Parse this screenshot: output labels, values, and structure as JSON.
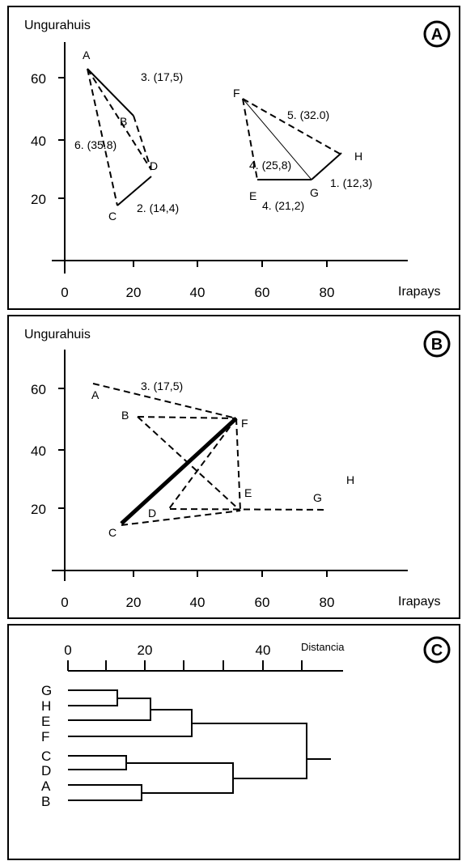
{
  "panel_a": {
    "badge": "A",
    "ylabel": "Ungurahuis",
    "xlabel": "Irapays",
    "yticks": [
      "20",
      "40",
      "60"
    ],
    "xticks": [
      "0",
      "20",
      "40",
      "60",
      "80"
    ],
    "points": [
      "A",
      "B",
      "C",
      "D",
      "E",
      "F",
      "G",
      "H"
    ],
    "annotations": [
      "3. (17,5)",
      "6. (35.8)",
      "2. (14,4)",
      "5. (32.0)",
      "4. (25,8)",
      "4. (21,2)",
      "1. (12,3)"
    ]
  },
  "panel_b": {
    "badge": "B",
    "ylabel": "Ungurahuis",
    "xlabel": "Irapays",
    "yticks": [
      "20",
      "40",
      "60"
    ],
    "xticks": [
      "0",
      "20",
      "40",
      "60",
      "80"
    ],
    "points": [
      "A",
      "B",
      "C",
      "D",
      "E",
      "F",
      "G",
      "H"
    ],
    "annotations": [
      "3. (17,5)"
    ]
  },
  "panel_c": {
    "badge": "C",
    "axis_label": "Distancia",
    "ticks": [
      "0",
      "20",
      "40"
    ],
    "leaves": [
      "G",
      "H",
      "E",
      "F",
      "C",
      "D",
      "A",
      "B"
    ]
  }
}
